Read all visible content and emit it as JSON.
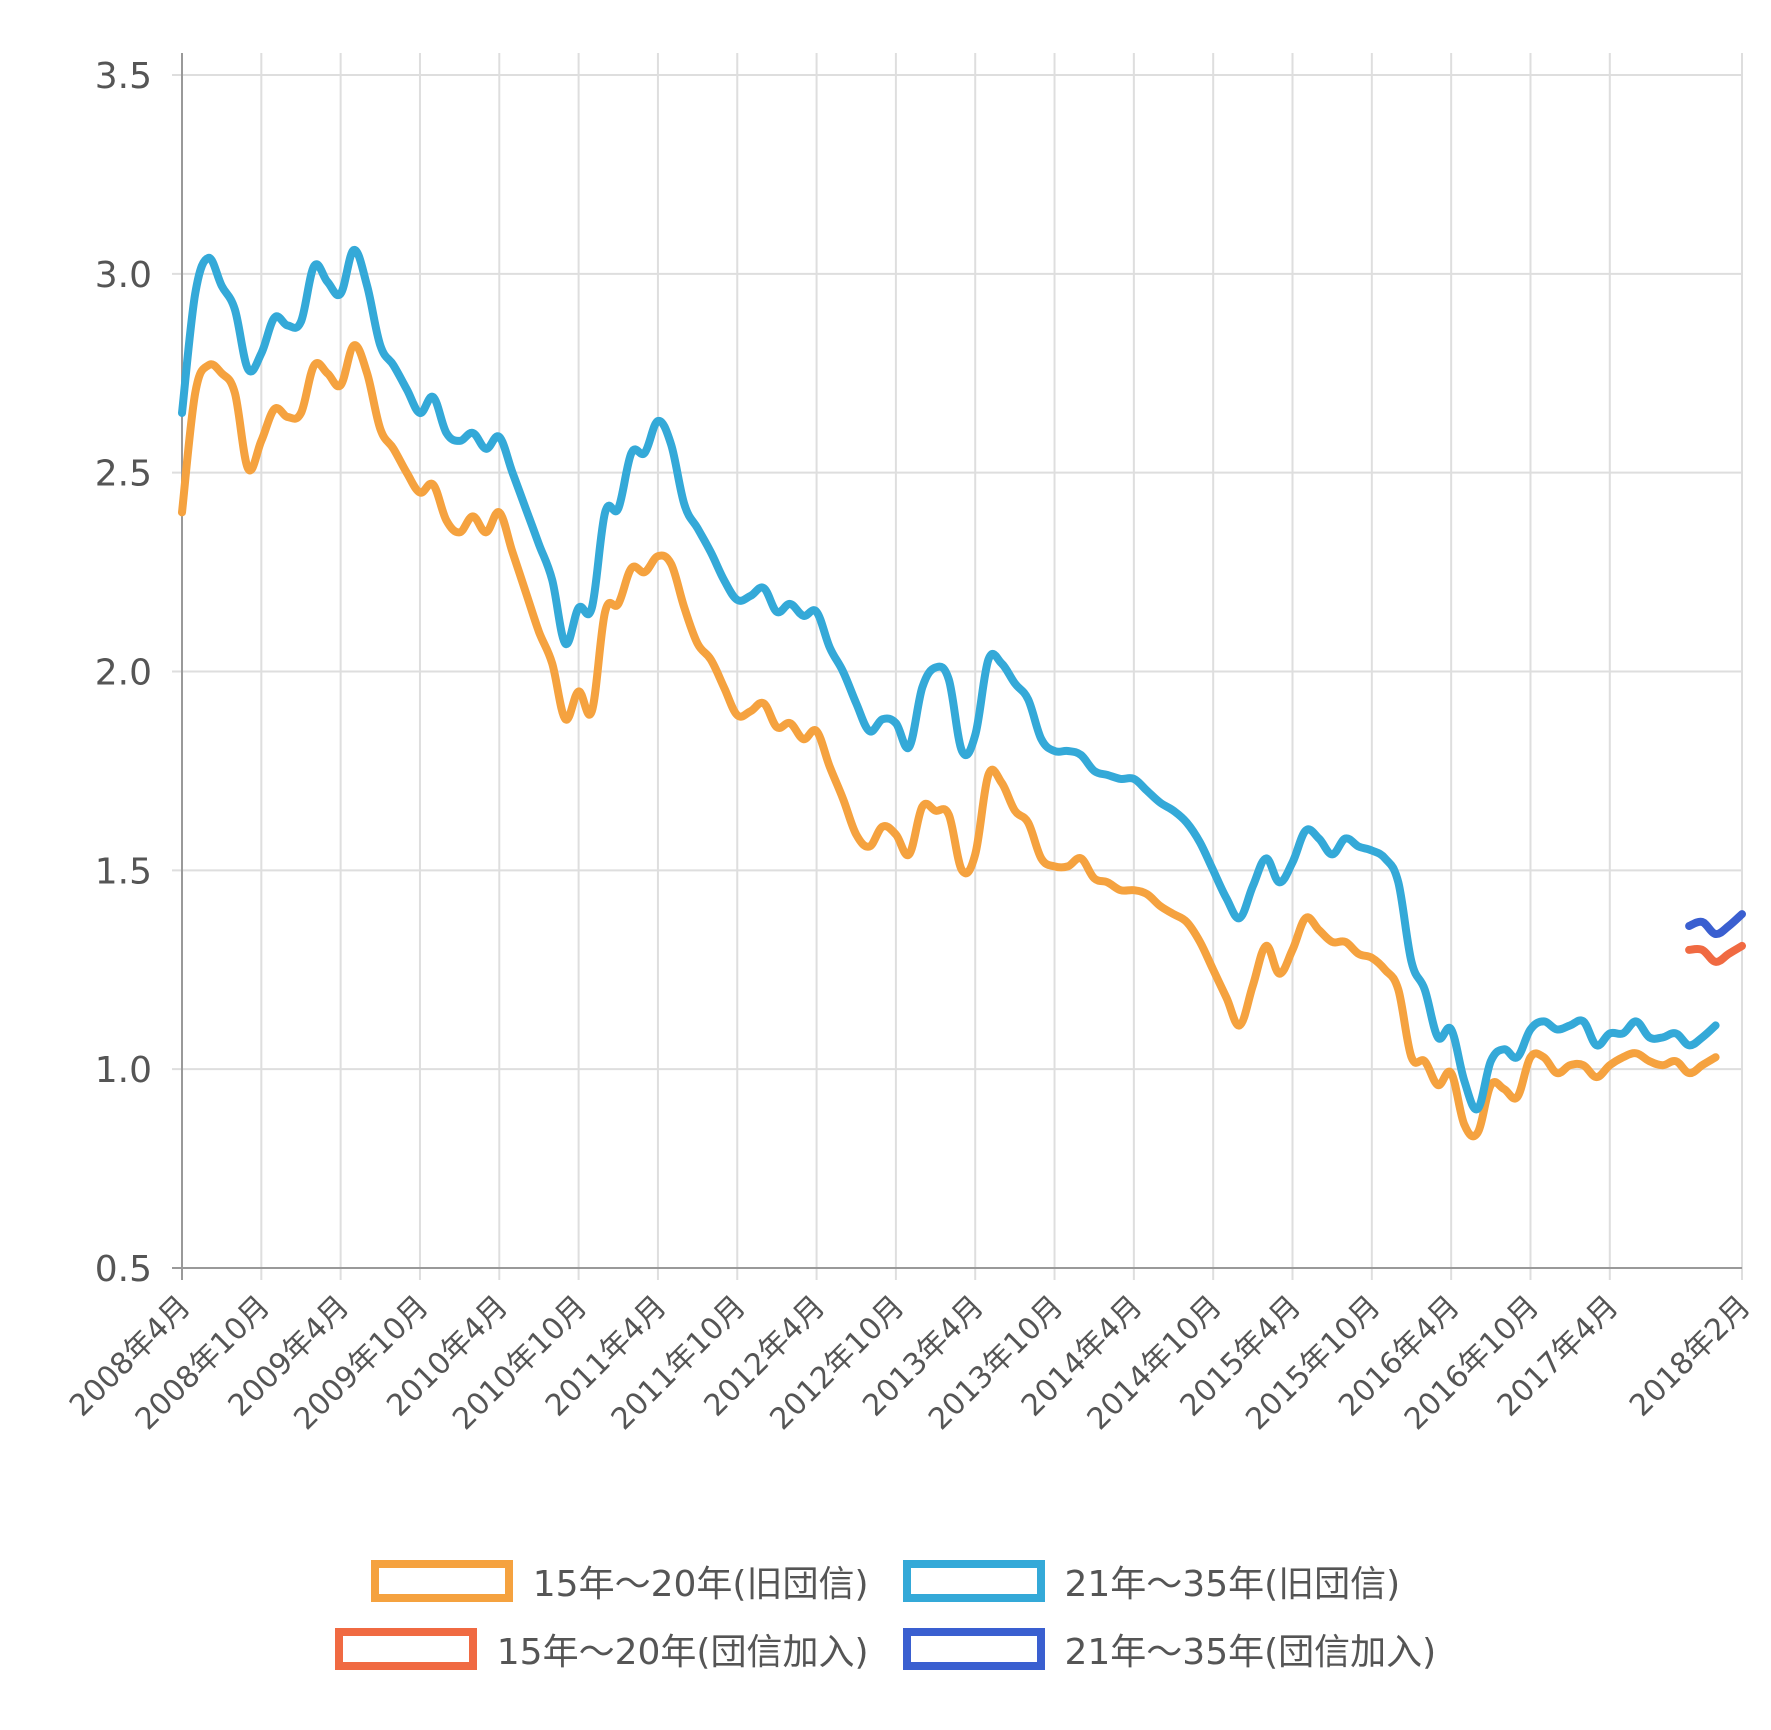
{
  "chart_data": {
    "type": "line",
    "title": "",
    "xlabel": "",
    "ylabel": "",
    "ylim": [
      0.5,
      3.5
    ],
    "yticks": [
      "0.5",
      "1.0",
      "1.5",
      "2.0",
      "2.5",
      "3.0",
      "3.5"
    ],
    "x_start": "2008年4月",
    "x_end": "2018年2月",
    "xtick_labels": [
      "2008年4月",
      "2008年10月",
      "2009年4月",
      "2009年10月",
      "2010年4月",
      "2010年10月",
      "2011年4月",
      "2011年10月",
      "2012年4月",
      "2012年10月",
      "2013年4月",
      "2013年10月",
      "2014年4月",
      "2014年10月",
      "2015年4月",
      "2015年10月",
      "2016年4月",
      "2016年10月",
      "2017年4月",
      "2018年2月"
    ],
    "grid": true,
    "legend_position": "bottom",
    "series": [
      {
        "name": "15年～20年(旧団信)",
        "color": "#f5a23f",
        "points": [
          [
            "2008年4月",
            2.4
          ],
          [
            "2008年5月",
            2.7
          ],
          [
            "2008年6月",
            2.77
          ],
          [
            "2008年7月",
            2.75
          ],
          [
            "2008年8月",
            2.7
          ],
          [
            "2008年9月",
            2.51
          ],
          [
            "2008年10月",
            2.58
          ],
          [
            "2008年11月",
            2.66
          ],
          [
            "2008年12月",
            2.64
          ],
          [
            "2009年1月",
            2.65
          ],
          [
            "2009年2月",
            2.77
          ],
          [
            "2009年3月",
            2.75
          ],
          [
            "2009年4月",
            2.72
          ],
          [
            "2009年5月",
            2.82
          ],
          [
            "2009年6月",
            2.75
          ],
          [
            "2009年7月",
            2.61
          ],
          [
            "2009年8月",
            2.56
          ],
          [
            "2009年9月",
            2.5
          ],
          [
            "2009年10月",
            2.45
          ],
          [
            "2009年11月",
            2.47
          ],
          [
            "2009年12月",
            2.38
          ],
          [
            "2010年1月",
            2.35
          ],
          [
            "2010年2月",
            2.39
          ],
          [
            "2010年3月",
            2.35
          ],
          [
            "2010年4月",
            2.4
          ],
          [
            "2010年5月",
            2.3
          ],
          [
            "2010年6月",
            2.2
          ],
          [
            "2010年7月",
            2.1
          ],
          [
            "2010年8月",
            2.02
          ],
          [
            "2010年9月",
            1.88
          ],
          [
            "2010年10月",
            1.95
          ],
          [
            "2010年11月",
            1.9
          ],
          [
            "2010年12月",
            2.15
          ],
          [
            "2011年1月",
            2.17
          ],
          [
            "2011年2月",
            2.26
          ],
          [
            "2011年3月",
            2.25
          ],
          [
            "2011年4月",
            2.29
          ],
          [
            "2011年5月",
            2.27
          ],
          [
            "2011年6月",
            2.16
          ],
          [
            "2011年7月",
            2.07
          ],
          [
            "2011年8月",
            2.03
          ],
          [
            "2011年9月",
            1.96
          ],
          [
            "2011年10月",
            1.89
          ],
          [
            "2011年11月",
            1.9
          ],
          [
            "2011年12月",
            1.92
          ],
          [
            "2012年1月",
            1.86
          ],
          [
            "2012年2月",
            1.87
          ],
          [
            "2012年3月",
            1.83
          ],
          [
            "2012年4月",
            1.85
          ],
          [
            "2012年5月",
            1.76
          ],
          [
            "2012年6月",
            1.68
          ],
          [
            "2012年7月",
            1.59
          ],
          [
            "2012年8月",
            1.56
          ],
          [
            "2012年9月",
            1.61
          ],
          [
            "2012年10月",
            1.59
          ],
          [
            "2012年11月",
            1.54
          ],
          [
            "2012年12月",
            1.66
          ],
          [
            "2013年1月",
            1.65
          ],
          [
            "2013年2月",
            1.64
          ],
          [
            "2013年3月",
            1.5
          ],
          [
            "2013年4月",
            1.54
          ],
          [
            "2013年5月",
            1.74
          ],
          [
            "2013年6月",
            1.72
          ],
          [
            "2013年7月",
            1.65
          ],
          [
            "2013年8月",
            1.62
          ],
          [
            "2013年9月",
            1.53
          ],
          [
            "2013年10月",
            1.51
          ],
          [
            "2013年11月",
            1.51
          ],
          [
            "2013年12月",
            1.53
          ],
          [
            "2014年1月",
            1.48
          ],
          [
            "2014年2月",
            1.47
          ],
          [
            "2014年3月",
            1.45
          ],
          [
            "2014年4月",
            1.45
          ],
          [
            "2014年5月",
            1.44
          ],
          [
            "2014年6月",
            1.41
          ],
          [
            "2014年7月",
            1.39
          ],
          [
            "2014年8月",
            1.37
          ],
          [
            "2014年9月",
            1.32
          ],
          [
            "2014年10月",
            1.25
          ],
          [
            "2014年11月",
            1.18
          ],
          [
            "2014年12月",
            1.11
          ],
          [
            "2015年1月",
            1.21
          ],
          [
            "2015年2月",
            1.31
          ],
          [
            "2015年3月",
            1.24
          ],
          [
            "2015年4月",
            1.3
          ],
          [
            "2015年5月",
            1.38
          ],
          [
            "2015年6月",
            1.35
          ],
          [
            "2015年7月",
            1.32
          ],
          [
            "2015年8月",
            1.32
          ],
          [
            "2015年9月",
            1.29
          ],
          [
            "2015年10月",
            1.28
          ],
          [
            "2015年11月",
            1.25
          ],
          [
            "2015年12月",
            1.2
          ],
          [
            "2016年1月",
            1.03
          ],
          [
            "2016年2月",
            1.02
          ],
          [
            "2016年3月",
            0.96
          ],
          [
            "2016年4月",
            0.99
          ],
          [
            "2016年5月",
            0.86
          ],
          [
            "2016年6月",
            0.84
          ],
          [
            "2016年7月",
            0.96
          ],
          [
            "2016年8月",
            0.95
          ],
          [
            "2016年9月",
            0.93
          ],
          [
            "2016年10月",
            1.03
          ],
          [
            "2016年11月",
            1.03
          ],
          [
            "2016年12月",
            0.99
          ],
          [
            "2017年1月",
            1.01
          ],
          [
            "2017年2月",
            1.01
          ],
          [
            "2017年3月",
            0.98
          ],
          [
            "2017年4月",
            1.01
          ],
          [
            "2017年5月",
            1.03
          ],
          [
            "2017年6月",
            1.04
          ],
          [
            "2017年7月",
            1.02
          ],
          [
            "2017年8月",
            1.01
          ],
          [
            "2017年9月",
            1.02
          ],
          [
            "2017年10月",
            0.99
          ],
          [
            "2017年11月",
            1.01
          ],
          [
            "2017年12月",
            1.03
          ]
        ]
      },
      {
        "name": "21年～35年(旧団信)",
        "color": "#34a9d8",
        "points": [
          [
            "2008年4月",
            2.65
          ],
          [
            "2008年5月",
            2.95
          ],
          [
            "2008年6月",
            3.04
          ],
          [
            "2008年7月",
            2.97
          ],
          [
            "2008年8月",
            2.91
          ],
          [
            "2008年9月",
            2.76
          ],
          [
            "2008年10月",
            2.8
          ],
          [
            "2008年11月",
            2.89
          ],
          [
            "2008年12月",
            2.87
          ],
          [
            "2009年1月",
            2.88
          ],
          [
            "2009年2月",
            3.02
          ],
          [
            "2009年3月",
            2.98
          ],
          [
            "2009年4月",
            2.95
          ],
          [
            "2009年5月",
            3.06
          ],
          [
            "2009年6月",
            2.97
          ],
          [
            "2009年7月",
            2.82
          ],
          [
            "2009年8月",
            2.77
          ],
          [
            "2009年9月",
            2.71
          ],
          [
            "2009年10月",
            2.65
          ],
          [
            "2009年11月",
            2.69
          ],
          [
            "2009年12月",
            2.6
          ],
          [
            "2010年1月",
            2.58
          ],
          [
            "2010年2月",
            2.6
          ],
          [
            "2010年3月",
            2.56
          ],
          [
            "2010年4月",
            2.59
          ],
          [
            "2010年5月",
            2.5
          ],
          [
            "2010年6月",
            2.41
          ],
          [
            "2010年7月",
            2.32
          ],
          [
            "2010年8月",
            2.23
          ],
          [
            "2010年9月",
            2.07
          ],
          [
            "2010年10月",
            2.16
          ],
          [
            "2010年11月",
            2.16
          ],
          [
            "2010年12月",
            2.4
          ],
          [
            "2011年1月",
            2.41
          ],
          [
            "2011年2月",
            2.55
          ],
          [
            "2011年3月",
            2.55
          ],
          [
            "2011年4月",
            2.63
          ],
          [
            "2011年5月",
            2.57
          ],
          [
            "2011年6月",
            2.42
          ],
          [
            "2011年7月",
            2.36
          ],
          [
            "2011年8月",
            2.3
          ],
          [
            "2011年9月",
            2.23
          ],
          [
            "2011年10月",
            2.18
          ],
          [
            "2011年11月",
            2.19
          ],
          [
            "2011年12月",
            2.21
          ],
          [
            "2012年1月",
            2.15
          ],
          [
            "2012年2月",
            2.17
          ],
          [
            "2012年3月",
            2.14
          ],
          [
            "2012年4月",
            2.15
          ],
          [
            "2012年5月",
            2.06
          ],
          [
            "2012年6月",
            2.0
          ],
          [
            "2012年7月",
            1.92
          ],
          [
            "2012年8月",
            1.85
          ],
          [
            "2012年9月",
            1.88
          ],
          [
            "2012年10月",
            1.87
          ],
          [
            "2012年11月",
            1.81
          ],
          [
            "2012年12月",
            1.96
          ],
          [
            "2013年1月",
            2.01
          ],
          [
            "2013年2月",
            1.98
          ],
          [
            "2013年3月",
            1.8
          ],
          [
            "2013年4月",
            1.84
          ],
          [
            "2013年5月",
            2.03
          ],
          [
            "2013年6月",
            2.02
          ],
          [
            "2013年7月",
            1.97
          ],
          [
            "2013年8月",
            1.93
          ],
          [
            "2013年9月",
            1.83
          ],
          [
            "2013年10月",
            1.8
          ],
          [
            "2013年11月",
            1.8
          ],
          [
            "2013年12月",
            1.79
          ],
          [
            "2014年1月",
            1.75
          ],
          [
            "2014年2月",
            1.74
          ],
          [
            "2014年3月",
            1.73
          ],
          [
            "2014年4月",
            1.73
          ],
          [
            "2014年5月",
            1.7
          ],
          [
            "2014年6月",
            1.67
          ],
          [
            "2014年7月",
            1.65
          ],
          [
            "2014年8月",
            1.62
          ],
          [
            "2014年9月",
            1.57
          ],
          [
            "2014年10月",
            1.5
          ],
          [
            "2014年11月",
            1.43
          ],
          [
            "2014年12月",
            1.38
          ],
          [
            "2015年1月",
            1.46
          ],
          [
            "2015年2月",
            1.53
          ],
          [
            "2015年3月",
            1.47
          ],
          [
            "2015年4月",
            1.52
          ],
          [
            "2015年5月",
            1.6
          ],
          [
            "2015年6月",
            1.58
          ],
          [
            "2015年7月",
            1.54
          ],
          [
            "2015年8月",
            1.58
          ],
          [
            "2015年9月",
            1.56
          ],
          [
            "2015年10月",
            1.55
          ],
          [
            "2015年11月",
            1.53
          ],
          [
            "2015年12月",
            1.47
          ],
          [
            "2016年1月",
            1.27
          ],
          [
            "2016年2月",
            1.2
          ],
          [
            "2016年3月",
            1.08
          ],
          [
            "2016年4月",
            1.1
          ],
          [
            "2016年5月",
            0.97
          ],
          [
            "2016年6月",
            0.9
          ],
          [
            "2016年7月",
            1.02
          ],
          [
            "2016年8月",
            1.05
          ],
          [
            "2016年9月",
            1.03
          ],
          [
            "2016年10月",
            1.1
          ],
          [
            "2016年11月",
            1.12
          ],
          [
            "2016年12月",
            1.1
          ],
          [
            "2017年1月",
            1.11
          ],
          [
            "2017年2月",
            1.12
          ],
          [
            "2017年3月",
            1.06
          ],
          [
            "2017年4月",
            1.09
          ],
          [
            "2017年5月",
            1.09
          ],
          [
            "2017年6月",
            1.12
          ],
          [
            "2017年7月",
            1.08
          ],
          [
            "2017年8月",
            1.08
          ],
          [
            "2017年9月",
            1.09
          ],
          [
            "2017年10月",
            1.06
          ],
          [
            "2017年11月",
            1.08
          ],
          [
            "2017年12月",
            1.11
          ]
        ]
      },
      {
        "name": "15年～20年(団信加入)",
        "color": "#f06a42",
        "points": [
          [
            "2017年10月",
            1.3
          ],
          [
            "2017年11月",
            1.3
          ],
          [
            "2017年12月",
            1.27
          ],
          [
            "2018年1月",
            1.29
          ],
          [
            "2018年2月",
            1.31
          ]
        ]
      },
      {
        "name": "21年～35年(団信加入)",
        "color": "#3a5fd0",
        "points": [
          [
            "2017年10月",
            1.36
          ],
          [
            "2017年11月",
            1.37
          ],
          [
            "2017年12月",
            1.34
          ],
          [
            "2018年1月",
            1.36
          ],
          [
            "2018年2月",
            1.39
          ]
        ]
      }
    ]
  }
}
